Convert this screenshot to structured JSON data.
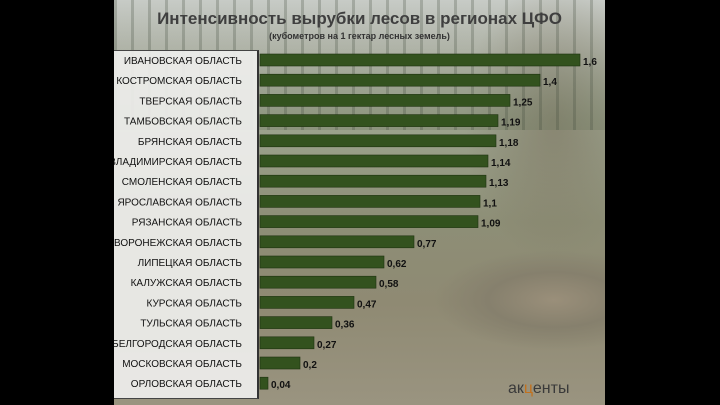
{
  "title": "Интенсивность вырубки лесов в регионах ЦФО",
  "subtitle": "(кубометров на 1 гектар лесных земель)",
  "logo": {
    "before": "ак",
    "mark": "ц",
    "after": "енты"
  },
  "colors": {
    "bar": "#33521e",
    "bar_edge": "#1f3310",
    "text": "#111111"
  },
  "chart_data": {
    "type": "bar",
    "orientation": "horizontal",
    "title": "Интенсивность вырубки лесов в регионах ЦФО",
    "subtitle": "(кубометров на 1 гектар лесных земель)",
    "categories": [
      "ИВАНОВСКАЯ ОБЛАСТЬ",
      "КОСТРОМСКАЯ ОБЛАСТЬ",
      "ТВЕРСКАЯ ОБЛАСТЬ",
      "ТАМБОВСКАЯ ОБЛАСТЬ",
      "БРЯНСКАЯ ОБЛАСТЬ",
      "ВЛАДИМИРСКАЯ ОБЛАСТЬ",
      "СМОЛЕНСКАЯ ОБЛАСТЬ",
      "ЯРОСЛАВСКАЯ ОБЛАСТЬ",
      "РЯЗАНСКАЯ ОБЛАСТЬ",
      "ВОРОНЕЖСКАЯ ОБЛАСТЬ",
      "ЛИПЕЦКАЯ ОБЛАСТЬ",
      "КАЛУЖСКАЯ ОБЛАСТЬ",
      "КУРСКАЯ ОБЛАСТЬ",
      "ТУЛЬСКАЯ ОБЛАСТЬ",
      "БЕЛГОРОДСКАЯ ОБЛАСТЬ",
      "МОСКОВСКАЯ ОБЛАСТЬ",
      "ОРЛОВСКАЯ ОБЛАСТЬ"
    ],
    "values": [
      1.6,
      1.4,
      1.25,
      1.19,
      1.18,
      1.14,
      1.13,
      1.1,
      1.09,
      0.77,
      0.62,
      0.58,
      0.47,
      0.36,
      0.27,
      0.2,
      0.04
    ],
    "value_labels": [
      "1,6",
      "1,4",
      "1,25",
      "1,19",
      "1,18",
      "1,14",
      "1,13",
      "1,1",
      "1,09",
      "0,77",
      "0,62",
      "0,58",
      "0,47",
      "0,36",
      "0,27",
      "0,2",
      "0,04"
    ],
    "xlim": [
      0,
      1.6
    ],
    "grid": false,
    "legend": "none"
  }
}
